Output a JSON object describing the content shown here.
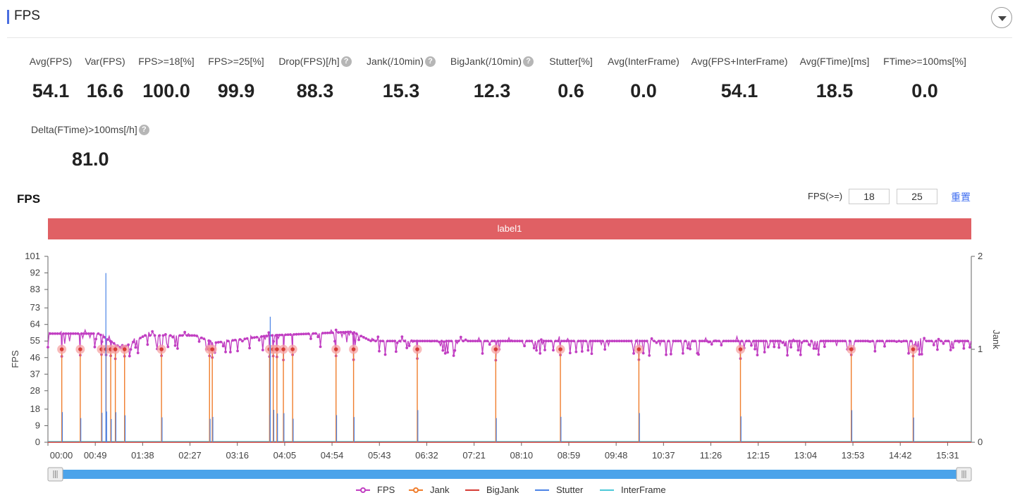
{
  "header": {
    "title": "FPS"
  },
  "metrics": [
    {
      "label": "Avg(FPS)",
      "value": "54.1",
      "help": false
    },
    {
      "label": "Var(FPS)",
      "value": "16.6",
      "help": false
    },
    {
      "label": "FPS>=18[%]",
      "value": "100.0",
      "help": false
    },
    {
      "label": "FPS>=25[%]",
      "value": "99.9",
      "help": false
    },
    {
      "label": "Drop(FPS)[/h]",
      "value": "88.3",
      "help": true
    },
    {
      "label": "Jank(/10min)",
      "value": "15.3",
      "help": true
    },
    {
      "label": "BigJank(/10min)",
      "value": "12.3",
      "help": true
    },
    {
      "label": "Stutter[%]",
      "value": "0.6",
      "help": false
    },
    {
      "label": "Avg(InterFrame)",
      "value": "0.0",
      "help": false
    },
    {
      "label": "Avg(FPS+InterFrame)",
      "value": "54.1",
      "help": false
    },
    {
      "label": "Avg(FTime)[ms]",
      "value": "18.5",
      "help": false
    },
    {
      "label": "FTime>=100ms[%]",
      "value": "0.0",
      "help": false
    },
    {
      "label": "Delta(FTime)>100ms[/h]",
      "value": "81.0",
      "help": true
    }
  ],
  "chart_section": {
    "title": "FPS",
    "threshold_label": "FPS(>=)",
    "threshold_low": "18",
    "threshold_high": "25",
    "reset_label": "重置",
    "band_label": "label1",
    "help_glyph": "?"
  },
  "chart_data": {
    "type": "line",
    "xlabel": "",
    "ylabel_left": "FPS",
    "ylabel_right": "Jank",
    "yticks_left": [
      0,
      9,
      18,
      28,
      37,
      46,
      55,
      64,
      73,
      83,
      92,
      101
    ],
    "yticks_right": [
      0,
      1,
      2
    ],
    "ylim_left": [
      0,
      101
    ],
    "ylim_right": [
      0,
      2
    ],
    "x_ticks": [
      "00:00",
      "00:49",
      "01:38",
      "02:27",
      "03:16",
      "04:05",
      "04:54",
      "05:43",
      "06:32",
      "07:21",
      "08:10",
      "08:59",
      "09:48",
      "10:37",
      "11:26",
      "12:15",
      "13:04",
      "13:53",
      "14:42",
      "15:31"
    ],
    "x_range_seconds": [
      0,
      1000
    ],
    "fps_profile": [
      {
        "t": 0,
        "fps": 59
      },
      {
        "t": 55,
        "fps": 59
      },
      {
        "t": 80,
        "fps": 51
      },
      {
        "t": 105,
        "fps": 58
      },
      {
        "t": 160,
        "fps": 58
      },
      {
        "t": 180,
        "fps": 54
      },
      {
        "t": 240,
        "fps": 58
      },
      {
        "t": 330,
        "fps": 60
      },
      {
        "t": 350,
        "fps": 55
      },
      {
        "t": 480,
        "fps": 55
      },
      {
        "t": 600,
        "fps": 55
      },
      {
        "t": 1000,
        "fps": 55
      },
      {
        "t": 1005,
        "fps": 60
      }
    ],
    "jank_events_seconds": [
      15,
      35,
      58,
      63,
      68,
      73,
      83,
      123,
      175,
      178,
      240,
      244,
      248,
      255,
      265,
      312,
      331,
      400,
      485,
      555,
      640,
      750,
      870,
      937
    ],
    "stutter_spike_seconds": [
      62,
      240
    ],
    "legend": [
      "FPS",
      "Jank",
      "BigJank",
      "Stutter",
      "InterFrame"
    ],
    "legend_position": "bottom-center",
    "colors": {
      "fps": "#c13ec2",
      "jank": "#f07d2c",
      "bigjank": "#d63b35",
      "stutter": "#4b83e6",
      "interframe": "#4cc8d8",
      "jank_marker": "#f5a4a4",
      "slider": "#4ba3ea"
    }
  }
}
